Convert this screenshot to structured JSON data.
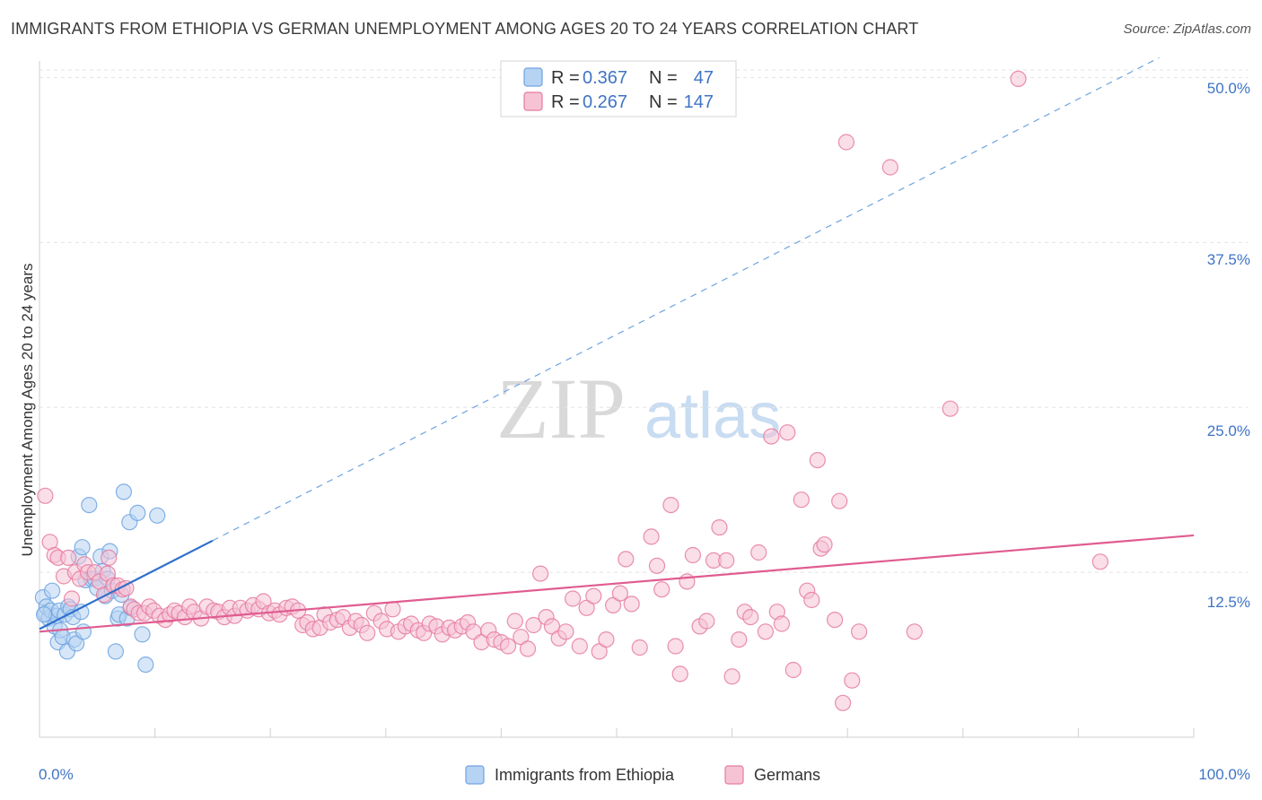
{
  "header": {
    "title": "IMMIGRANTS FROM ETHIOPIA VS GERMAN UNEMPLOYMENT AMONG AGES 20 TO 24 YEARS CORRELATION CHART",
    "source": "Source: ZipAtlas.com"
  },
  "watermark": {
    "part1": "ZIP",
    "part2": "atlas"
  },
  "chart_data": {
    "type": "scatter",
    "title": "IMMIGRANTS FROM ETHIOPIA VS GERMAN UNEMPLOYMENT AMONG AGES 20 TO 24 YEARS CORRELATION CHART",
    "xlabel": "",
    "ylabel": "Unemployment Among Ages 20 to 24 years",
    "xlim": [
      0,
      100
    ],
    "ylim": [
      0,
      52
    ],
    "x_tick_labels": [
      "0.0%",
      "100.0%"
    ],
    "y_ticks": [
      12.5,
      25.0,
      37.5,
      50.0
    ],
    "y_tick_labels": [
      "12.5%",
      "25.0%",
      "37.5%",
      "50.0%"
    ],
    "grid": true,
    "legend": {
      "position": "top-center",
      "entries": [
        {
          "r_label": "R =",
          "r_value": "0.367",
          "n_label": "N =",
          "n_value": "47"
        },
        {
          "r_label": "R =",
          "r_value": "0.267",
          "n_label": "N =",
          "n_value": "147"
        }
      ]
    },
    "series": [
      {
        "name": "Immigrants from Ethiopia",
        "color": "#6fa3e0",
        "fill": "#b7d3f3",
        "trend": {
          "x0": 0,
          "y0": 8.2,
          "x1": 15,
          "y1": 14.9,
          "style": "solid"
        },
        "trend_ext": {
          "x0": 15,
          "y0": 14.9,
          "x1": 97,
          "y1": 51.5,
          "style": "dashed"
        },
        "points": [
          [
            0.3,
            10.6
          ],
          [
            0.5,
            9.4
          ],
          [
            0.6,
            9.9
          ],
          [
            0.8,
            9.0
          ],
          [
            1.0,
            9.6
          ],
          [
            1.1,
            11.1
          ],
          [
            1.3,
            8.4
          ],
          [
            1.5,
            9.2
          ],
          [
            1.6,
            7.2
          ],
          [
            1.7,
            9.6
          ],
          [
            1.8,
            8.1
          ],
          [
            2.0,
            7.6
          ],
          [
            2.2,
            9.3
          ],
          [
            2.4,
            6.5
          ],
          [
            2.5,
            9.9
          ],
          [
            2.7,
            9.7
          ],
          [
            2.9,
            9.1
          ],
          [
            3.0,
            7.4
          ],
          [
            3.2,
            7.1
          ],
          [
            3.4,
            13.7
          ],
          [
            3.6,
            9.5
          ],
          [
            3.7,
            14.4
          ],
          [
            3.8,
            8.0
          ],
          [
            4.0,
            11.9
          ],
          [
            4.3,
            17.6
          ],
          [
            4.5,
            12.0
          ],
          [
            4.8,
            12.0
          ],
          [
            5.0,
            11.3
          ],
          [
            5.3,
            13.7
          ],
          [
            5.5,
            12.6
          ],
          [
            5.7,
            10.7
          ],
          [
            5.9,
            12.0
          ],
          [
            6.1,
            14.1
          ],
          [
            6.3,
            11.1
          ],
          [
            6.6,
            6.5
          ],
          [
            6.8,
            9.0
          ],
          [
            6.9,
            9.3
          ],
          [
            7.1,
            10.8
          ],
          [
            7.3,
            18.6
          ],
          [
            7.6,
            9.0
          ],
          [
            7.8,
            16.3
          ],
          [
            7.9,
            9.8
          ],
          [
            8.5,
            17.0
          ],
          [
            8.9,
            7.8
          ],
          [
            9.2,
            5.5
          ],
          [
            10.2,
            16.8
          ],
          [
            0.4,
            9.3
          ]
        ]
      },
      {
        "name": "Germans",
        "color": "#e57ba0",
        "fill": "#f6c3d5",
        "trend": {
          "x0": 0,
          "y0": 8.0,
          "x1": 100,
          "y1": 15.3,
          "style": "solid"
        },
        "points": [
          [
            0.5,
            18.3
          ],
          [
            0.9,
            14.8
          ],
          [
            1.3,
            13.8
          ],
          [
            1.6,
            13.6
          ],
          [
            2.1,
            12.2
          ],
          [
            2.5,
            13.6
          ],
          [
            3.1,
            12.5
          ],
          [
            3.5,
            12.0
          ],
          [
            3.9,
            13.1
          ],
          [
            4.2,
            12.5
          ],
          [
            4.8,
            12.5
          ],
          [
            5.2,
            11.8
          ],
          [
            5.6,
            10.8
          ],
          [
            5.9,
            12.4
          ],
          [
            6.4,
            11.5
          ],
          [
            6.8,
            11.5
          ],
          [
            7.2,
            11.2
          ],
          [
            7.5,
            11.3
          ],
          [
            7.9,
            9.9
          ],
          [
            8.2,
            9.7
          ],
          [
            8.6,
            9.4
          ],
          [
            9.1,
            9.4
          ],
          [
            9.5,
            9.9
          ],
          [
            9.9,
            9.6
          ],
          [
            10.4,
            9.2
          ],
          [
            10.9,
            8.9
          ],
          [
            11.3,
            9.3
          ],
          [
            11.7,
            9.6
          ],
          [
            12.1,
            9.4
          ],
          [
            12.6,
            9.1
          ],
          [
            13.0,
            9.9
          ],
          [
            13.4,
            9.5
          ],
          [
            14.0,
            9.0
          ],
          [
            14.5,
            9.9
          ],
          [
            15.1,
            9.6
          ],
          [
            15.5,
            9.5
          ],
          [
            16.0,
            9.1
          ],
          [
            16.5,
            9.8
          ],
          [
            16.9,
            9.2
          ],
          [
            17.4,
            9.8
          ],
          [
            18.0,
            9.6
          ],
          [
            18.5,
            10.0
          ],
          [
            19.0,
            9.7
          ],
          [
            19.4,
            10.3
          ],
          [
            19.9,
            9.4
          ],
          [
            20.4,
            9.6
          ],
          [
            20.8,
            9.3
          ],
          [
            21.4,
            9.8
          ],
          [
            21.9,
            9.9
          ],
          [
            22.4,
            9.6
          ],
          [
            22.8,
            8.5
          ],
          [
            23.2,
            8.7
          ],
          [
            23.7,
            8.2
          ],
          [
            24.3,
            8.3
          ],
          [
            24.7,
            9.3
          ],
          [
            25.2,
            8.7
          ],
          [
            25.8,
            8.9
          ],
          [
            26.3,
            9.1
          ],
          [
            26.9,
            8.3
          ],
          [
            27.4,
            8.8
          ],
          [
            27.9,
            8.5
          ],
          [
            28.4,
            7.9
          ],
          [
            29.0,
            9.4
          ],
          [
            29.6,
            8.8
          ],
          [
            30.1,
            8.2
          ],
          [
            30.6,
            9.7
          ],
          [
            31.1,
            8.0
          ],
          [
            31.7,
            8.4
          ],
          [
            32.2,
            8.6
          ],
          [
            32.8,
            8.1
          ],
          [
            33.3,
            7.9
          ],
          [
            33.8,
            8.6
          ],
          [
            34.4,
            8.4
          ],
          [
            34.9,
            7.8
          ],
          [
            35.5,
            8.3
          ],
          [
            36.0,
            8.1
          ],
          [
            36.6,
            8.4
          ],
          [
            37.1,
            8.7
          ],
          [
            37.6,
            8.0
          ],
          [
            38.3,
            7.2
          ],
          [
            38.9,
            8.1
          ],
          [
            39.4,
            7.4
          ],
          [
            40.0,
            7.2
          ],
          [
            40.6,
            6.9
          ],
          [
            41.2,
            8.8
          ],
          [
            41.7,
            7.6
          ],
          [
            42.3,
            6.7
          ],
          [
            42.8,
            8.5
          ],
          [
            43.4,
            12.4
          ],
          [
            43.9,
            9.1
          ],
          [
            44.4,
            8.4
          ],
          [
            45.0,
            7.5
          ],
          [
            45.6,
            8.0
          ],
          [
            46.2,
            10.5
          ],
          [
            46.8,
            6.9
          ],
          [
            47.4,
            9.8
          ],
          [
            48.0,
            10.7
          ],
          [
            48.5,
            6.5
          ],
          [
            49.1,
            7.4
          ],
          [
            49.7,
            10.0
          ],
          [
            50.3,
            10.9
          ],
          [
            50.8,
            13.5
          ],
          [
            51.3,
            10.1
          ],
          [
            52.0,
            6.8
          ],
          [
            53.0,
            15.2
          ],
          [
            53.5,
            13.0
          ],
          [
            53.9,
            11.2
          ],
          [
            54.7,
            17.6
          ],
          [
            55.1,
            6.9
          ],
          [
            55.5,
            4.8
          ],
          [
            56.1,
            11.8
          ],
          [
            56.6,
            13.8
          ],
          [
            57.2,
            8.4
          ],
          [
            57.8,
            8.8
          ],
          [
            58.4,
            13.4
          ],
          [
            58.9,
            15.9
          ],
          [
            59.5,
            13.4
          ],
          [
            60.0,
            4.6
          ],
          [
            60.6,
            7.4
          ],
          [
            61.1,
            9.5
          ],
          [
            61.6,
            9.1
          ],
          [
            62.3,
            14.0
          ],
          [
            62.9,
            8.0
          ],
          [
            63.4,
            22.8
          ],
          [
            63.9,
            9.5
          ],
          [
            64.3,
            8.6
          ],
          [
            64.8,
            23.1
          ],
          [
            65.3,
            5.1
          ],
          [
            66.0,
            18.0
          ],
          [
            66.5,
            11.1
          ],
          [
            66.9,
            10.4
          ],
          [
            67.4,
            21.0
          ],
          [
            67.7,
            14.3
          ],
          [
            68.0,
            14.6
          ],
          [
            68.9,
            8.9
          ],
          [
            69.3,
            17.9
          ],
          [
            69.6,
            2.6
          ],
          [
            69.9,
            45.1
          ],
          [
            70.4,
            4.3
          ],
          [
            71.0,
            8.0
          ],
          [
            73.7,
            43.2
          ],
          [
            75.8,
            8.0
          ],
          [
            78.9,
            24.9
          ],
          [
            84.8,
            49.9
          ],
          [
            91.9,
            13.3
          ],
          [
            6.0,
            13.6
          ],
          [
            2.8,
            10.5
          ]
        ]
      }
    ]
  },
  "bottom_legend": [
    {
      "label": "Immigrants from Ethiopia"
    },
    {
      "label": "Germans"
    }
  ]
}
